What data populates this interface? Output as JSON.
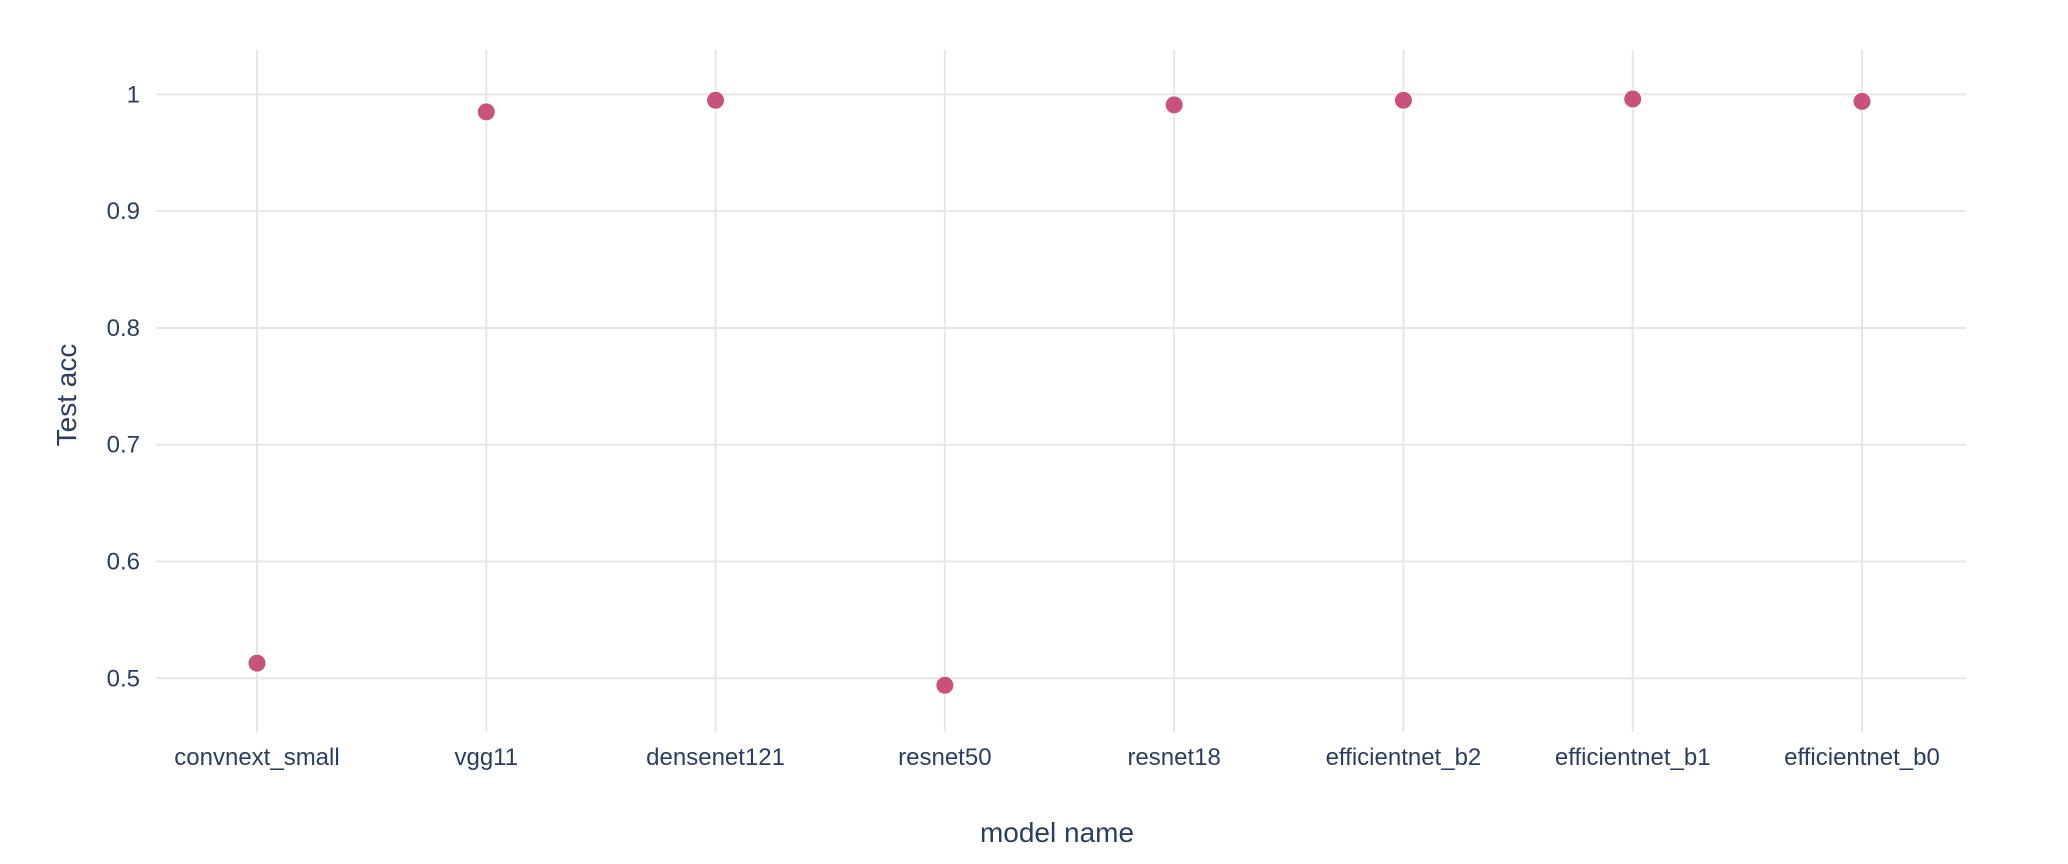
{
  "chart_data": {
    "type": "scatter",
    "title": "",
    "xlabel": "model name",
    "ylabel": "Test acc",
    "categories": [
      "convnext_small",
      "vgg11",
      "densenet121",
      "resnet50",
      "resnet18",
      "efficientnet_b2",
      "efficientnet_b1",
      "efficientnet_b0"
    ],
    "values": [
      0.513,
      0.985,
      0.995,
      0.494,
      0.991,
      0.995,
      0.996,
      0.994
    ],
    "yticks": [
      0.5,
      0.6,
      0.7,
      0.8,
      0.9,
      1
    ],
    "ytick_labels": [
      "0.5",
      "0.6",
      "0.7",
      "0.8",
      "0.9",
      "1"
    ],
    "ylim": [
      0.454,
      1.038
    ],
    "grid": true,
    "legend": "none",
    "marker_color": "#c9527c"
  }
}
